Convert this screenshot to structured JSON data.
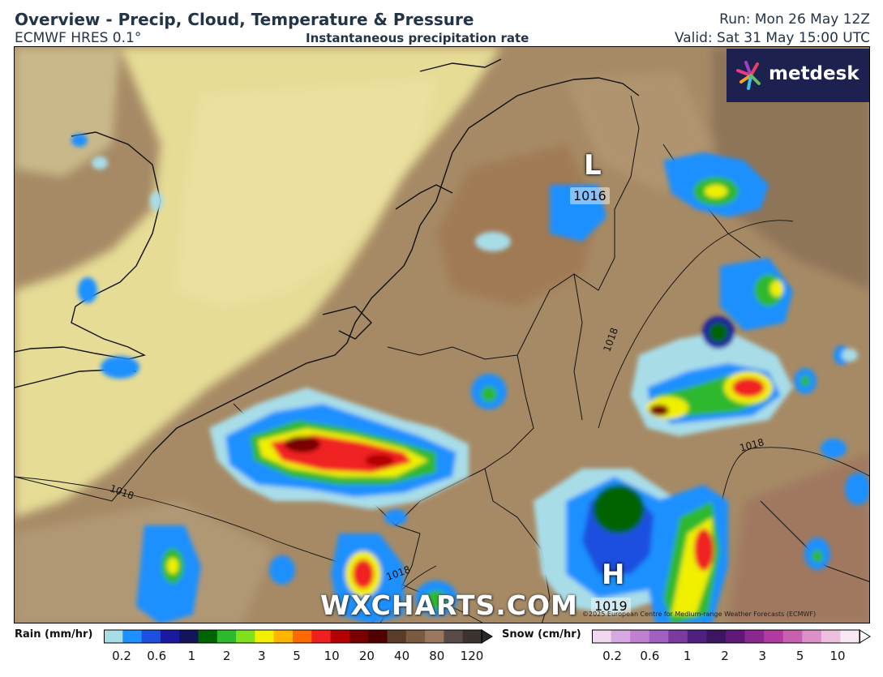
{
  "header": {
    "title": "Overview - Precip, Cloud, Temperature & Pressure",
    "model": "ECMWF HRES 0.1°",
    "subtitle": "Instantaneous precipitation rate",
    "run": "Run: Mon 26 May 12Z",
    "valid": "Valid: Sat 31 May 15:00 UTC"
  },
  "brand": {
    "name": "metdesk"
  },
  "watermark": "WXCHARTS.COM",
  "credit": "©2025 European Centre for Medium-range Weather Forecasts (ECMWF)",
  "pressure_systems": [
    {
      "type": "L",
      "value": "1016"
    },
    {
      "type": "H",
      "value": "1019"
    }
  ],
  "isobar_labels": [
    "1018",
    "1018",
    "1018",
    "1018"
  ],
  "rain_legend": {
    "title": "Rain (mm/hr)",
    "ticks": [
      "0.2",
      "0.6",
      "1",
      "2",
      "3",
      "5",
      "10",
      "20",
      "40",
      "80",
      "120"
    ],
    "colors": [
      "#a8dde8",
      "#1e90ff",
      "#1f4fe0",
      "#1a1aa0",
      "#14145a",
      "#006400",
      "#2db82d",
      "#7fe01e",
      "#f0f000",
      "#ffb400",
      "#ff6a00",
      "#f02020",
      "#b40000",
      "#780000",
      "#500000",
      "#5a3c2a",
      "#7a5a40",
      "#9a7860",
      "#5a4a4a",
      "#3c3232"
    ]
  },
  "snow_legend": {
    "title": "Snow (cm/hr)",
    "ticks": [
      "0.2",
      "0.6",
      "1",
      "2",
      "3",
      "5",
      "10"
    ],
    "colors": [
      "#f0d8f0",
      "#d8a8e0",
      "#c080d0",
      "#a060c0",
      "#7a3aa0",
      "#502080",
      "#3c1660",
      "#601878",
      "#8a2890",
      "#b03aa0",
      "#c860b0",
      "#dc90c8",
      "#ecc0e0",
      "#f8e8f4"
    ]
  }
}
